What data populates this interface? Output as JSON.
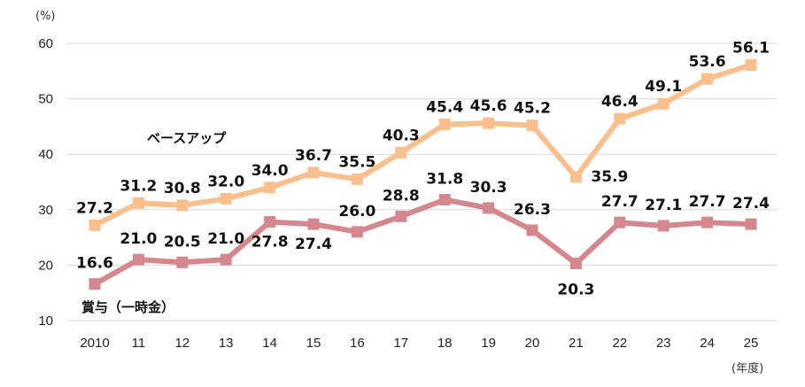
{
  "chart_data": {
    "type": "line",
    "y_unit": "(%)",
    "x_unit": "(年度)",
    "categories": [
      "2010",
      "11",
      "12",
      "13",
      "14",
      "15",
      "16",
      "17",
      "18",
      "19",
      "20",
      "21",
      "22",
      "23",
      "24",
      "25"
    ],
    "ylim": [
      10,
      60
    ],
    "yticks": [
      "10",
      "20",
      "30",
      "40",
      "50",
      "60"
    ],
    "grid": true,
    "legend": "inline labels next to each line",
    "series": [
      {
        "name": "ベースアップ",
        "color": "#f9bf8c",
        "values": [
          27.2,
          31.2,
          30.8,
          32.0,
          34.0,
          36.7,
          35.5,
          40.3,
          45.4,
          45.6,
          45.2,
          35.9,
          46.4,
          49.1,
          53.6,
          56.1
        ],
        "labels": [
          "27.2",
          "31.2",
          "30.8",
          "32.0",
          "34.0",
          "36.7",
          "35.5",
          "40.3",
          "45.4",
          "45.6",
          "45.2",
          "35.9",
          "46.4",
          "49.1",
          "53.6",
          "56.1"
        ]
      },
      {
        "name": "賞与（一時金）",
        "color": "#d4878d",
        "values": [
          16.6,
          21.0,
          20.5,
          21.0,
          27.8,
          27.4,
          26.0,
          28.8,
          31.8,
          30.3,
          26.3,
          20.3,
          27.7,
          27.1,
          27.7,
          27.4
        ],
        "labels": [
          "16.6",
          "21.0",
          "20.5",
          "21.0",
          "27.8",
          "27.4",
          "26.0",
          "28.8",
          "31.8",
          "30.3",
          "26.3",
          "20.3",
          "27.7",
          "27.1",
          "27.7",
          "27.4"
        ]
      }
    ]
  }
}
